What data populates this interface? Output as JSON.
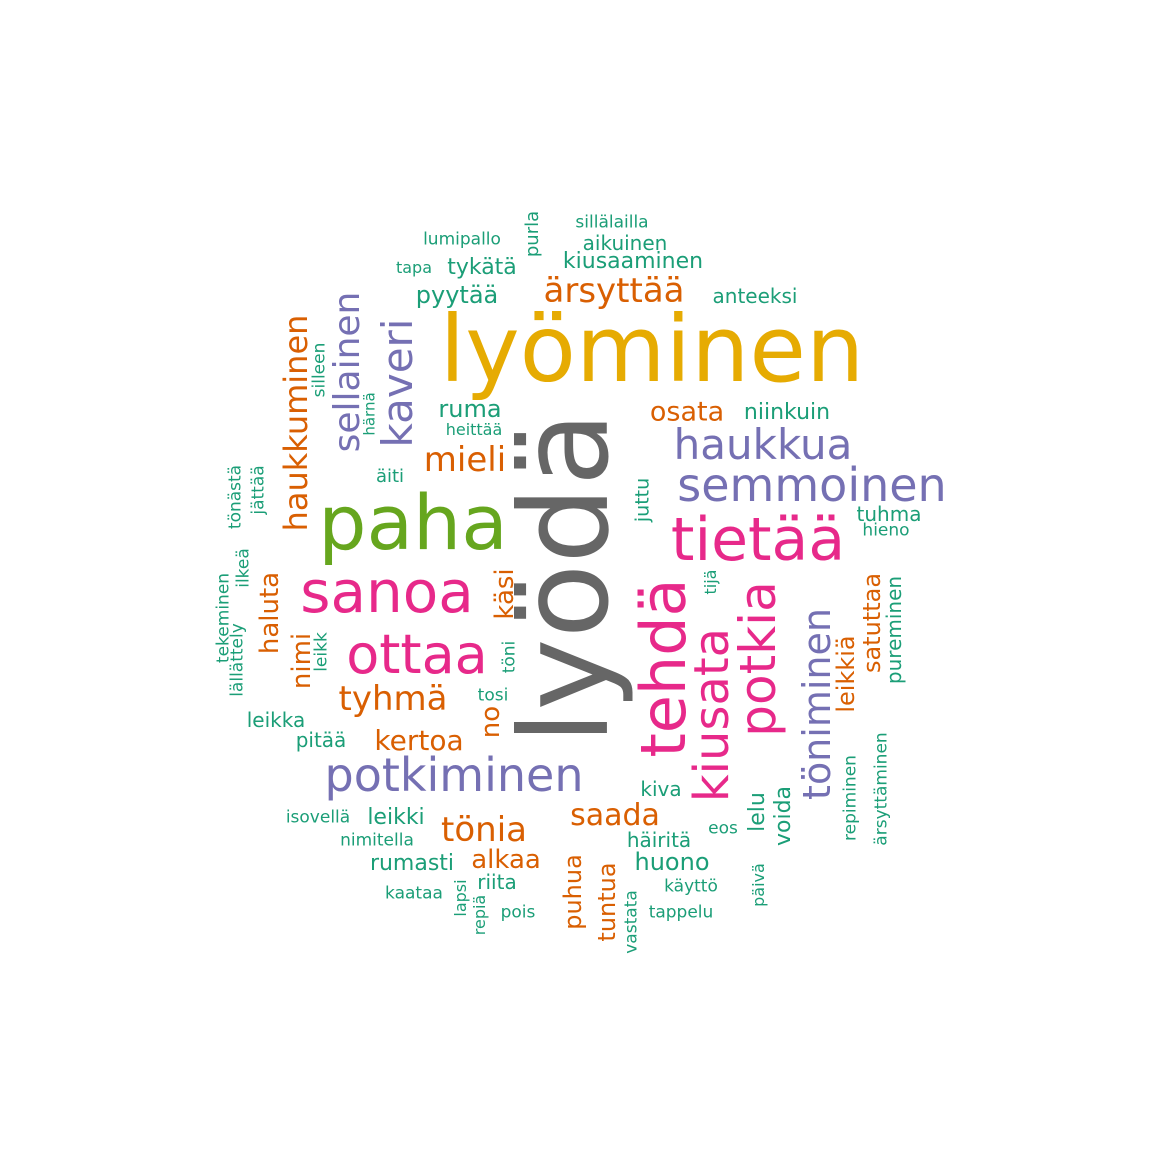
{
  "palette": {
    "gray": "#666666",
    "gold": "#e6ab02",
    "green": "#66a61e",
    "magenta": "#e7298a",
    "purple": "#7570b3",
    "orange": "#d95f02",
    "teal": "#1b9e77"
  },
  "words": [
    {
      "text": "lyödä",
      "color": "gray",
      "vertical": true
    },
    {
      "text": "lyöminen",
      "color": "gold",
      "vertical": false
    },
    {
      "text": "paha",
      "color": "green",
      "vertical": false
    },
    {
      "text": "sanoa",
      "color": "magenta",
      "vertical": false
    },
    {
      "text": "tietää",
      "color": "magenta",
      "vertical": false
    },
    {
      "text": "tehdä",
      "color": "magenta",
      "vertical": true
    },
    {
      "text": "ottaa",
      "color": "magenta",
      "vertical": false
    },
    {
      "text": "potkia",
      "color": "magenta",
      "vertical": true
    },
    {
      "text": "kiusata",
      "color": "magenta",
      "vertical": true
    },
    {
      "text": "semmoinen",
      "color": "purple",
      "vertical": false
    },
    {
      "text": "potkiminen",
      "color": "purple",
      "vertical": false
    },
    {
      "text": "haukkua",
      "color": "purple",
      "vertical": false
    },
    {
      "text": "kaveri",
      "color": "purple",
      "vertical": true
    },
    {
      "text": "sellainen",
      "color": "purple",
      "vertical": true
    },
    {
      "text": "töniminen",
      "color": "purple",
      "vertical": true
    },
    {
      "text": "haukkuminen",
      "color": "orange",
      "vertical": true
    },
    {
      "text": "ärsyttää",
      "color": "orange",
      "vertical": false
    },
    {
      "text": "mieli",
      "color": "orange",
      "vertical": false
    },
    {
      "text": "tyhmä",
      "color": "orange",
      "vertical": false
    },
    {
      "text": "tönia",
      "color": "orange",
      "vertical": false
    },
    {
      "text": "osata",
      "color": "orange",
      "vertical": false
    },
    {
      "text": "saada",
      "color": "orange",
      "vertical": false
    },
    {
      "text": "kertoa",
      "color": "orange",
      "vertical": false
    },
    {
      "text": "alkaa",
      "color": "orange",
      "vertical": false
    },
    {
      "text": "satuttaa",
      "color": "orange",
      "vertical": true
    },
    {
      "text": "leikkiä",
      "color": "orange",
      "vertical": true
    },
    {
      "text": "haluta",
      "color": "orange",
      "vertical": true
    },
    {
      "text": "nimi",
      "color": "orange",
      "vertical": true
    },
    {
      "text": "käsi",
      "color": "orange",
      "vertical": true
    },
    {
      "text": "no",
      "color": "orange",
      "vertical": true
    },
    {
      "text": "puhua",
      "color": "orange",
      "vertical": true
    },
    {
      "text": "tuntua",
      "color": "orange",
      "vertical": true
    },
    {
      "text": "lumipallo",
      "color": "teal",
      "vertical": false
    },
    {
      "text": "purla",
      "color": "teal",
      "vertical": true
    },
    {
      "text": "sillälailla",
      "color": "teal",
      "vertical": false
    },
    {
      "text": "aikuinen",
      "color": "teal",
      "vertical": false
    },
    {
      "text": "tapa",
      "color": "teal",
      "vertical": false
    },
    {
      "text": "tykätä",
      "color": "teal",
      "vertical": false
    },
    {
      "text": "kiusaaminen",
      "color": "teal",
      "vertical": false
    },
    {
      "text": "pyytää",
      "color": "teal",
      "vertical": false
    },
    {
      "text": "anteeksi",
      "color": "teal",
      "vertical": false
    },
    {
      "text": "silleen",
      "color": "teal",
      "vertical": true
    },
    {
      "text": "härnä",
      "color": "teal",
      "vertical": true
    },
    {
      "text": "ruma",
      "color": "teal",
      "vertical": false
    },
    {
      "text": "heittää",
      "color": "teal",
      "vertical": false
    },
    {
      "text": "niinkuin",
      "color": "teal",
      "vertical": false
    },
    {
      "text": "äiti",
      "color": "teal",
      "vertical": false
    },
    {
      "text": "tönästä",
      "color": "teal",
      "vertical": true
    },
    {
      "text": "jättää",
      "color": "teal",
      "vertical": true
    },
    {
      "text": "juttu",
      "color": "teal",
      "vertical": true
    },
    {
      "text": "tuhma",
      "color": "teal",
      "vertical": false
    },
    {
      "text": "hieno",
      "color": "teal",
      "vertical": false
    },
    {
      "text": "ilkeä",
      "color": "teal",
      "vertical": true
    },
    {
      "text": "tekeminen",
      "color": "teal",
      "vertical": true
    },
    {
      "text": "lällättely",
      "color": "teal",
      "vertical": true
    },
    {
      "text": "leikk",
      "color": "teal",
      "vertical": true
    },
    {
      "text": "töni",
      "color": "teal",
      "vertical": true
    },
    {
      "text": "tijä",
      "color": "teal",
      "vertical": true
    },
    {
      "text": "pureminen",
      "color": "teal",
      "vertical": true
    },
    {
      "text": "tosi",
      "color": "teal",
      "vertical": false
    },
    {
      "text": "leikka",
      "color": "teal",
      "vertical": false
    },
    {
      "text": "pitää",
      "color": "teal",
      "vertical": false
    },
    {
      "text": "kiva",
      "color": "teal",
      "vertical": false
    },
    {
      "text": "repiminen",
      "color": "teal",
      "vertical": true
    },
    {
      "text": "ärsyttäminen",
      "color": "teal",
      "vertical": true
    },
    {
      "text": "isovellä",
      "color": "teal",
      "vertical": false
    },
    {
      "text": "leikki",
      "color": "teal",
      "vertical": false
    },
    {
      "text": "nimitella",
      "color": "teal",
      "vertical": false
    },
    {
      "text": "häiritä",
      "color": "teal",
      "vertical": false
    },
    {
      "text": "eos",
      "color": "teal",
      "vertical": false
    },
    {
      "text": "lelu",
      "color": "teal",
      "vertical": true
    },
    {
      "text": "voida",
      "color": "teal",
      "vertical": true
    },
    {
      "text": "rumasti",
      "color": "teal",
      "vertical": false
    },
    {
      "text": "huono",
      "color": "teal",
      "vertical": false
    },
    {
      "text": "kaataa",
      "color": "teal",
      "vertical": false
    },
    {
      "text": "riita",
      "color": "teal",
      "vertical": false
    },
    {
      "text": "lapsi",
      "color": "teal",
      "vertical": true
    },
    {
      "text": "repiä",
      "color": "teal",
      "vertical": true
    },
    {
      "text": "pois",
      "color": "teal",
      "vertical": false
    },
    {
      "text": "käyttö",
      "color": "teal",
      "vertical": false
    },
    {
      "text": "päivä",
      "color": "teal",
      "vertical": true
    },
    {
      "text": "vastata",
      "color": "teal",
      "vertical": true
    },
    {
      "text": "tappelu",
      "color": "teal",
      "vertical": false
    }
  ]
}
